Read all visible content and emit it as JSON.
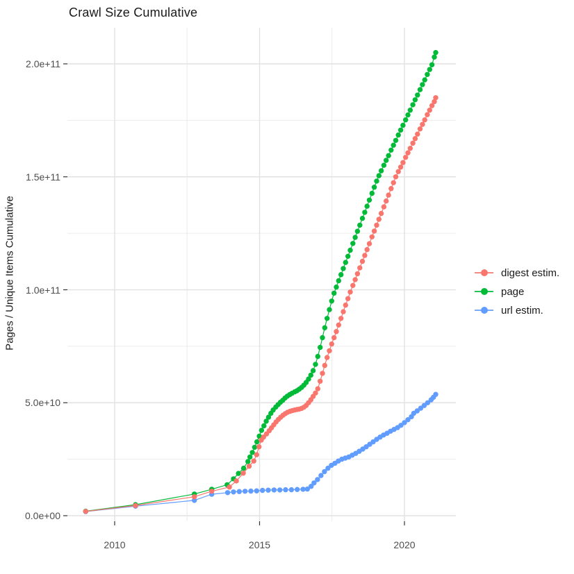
{
  "chart_data": {
    "type": "line",
    "title": "Crawl Size Cumulative",
    "xlabel": "",
    "ylabel": "Pages / Unique Items Cumulative",
    "legend_position": "right",
    "grid": true,
    "marker": "point",
    "xlim": [
      2008.4,
      2021.8
    ],
    "ylim": [
      -2500000000,
      216000000000
    ],
    "x_tick_values": [
      2010,
      2015,
      2020
    ],
    "x_tick_labels": [
      "2010",
      "2015",
      "2020"
    ],
    "x_minor_tick_values": [
      2012.5,
      2017.5
    ],
    "y_tick_values": [
      0,
      50000000000,
      100000000000,
      150000000000,
      200000000000
    ],
    "y_tick_labels": [
      "0.0e+00",
      "5.0e+10",
      "1.0e+11",
      "1.5e+11",
      "2.0e+11"
    ],
    "y_minor_tick_values": [
      25000000000,
      75000000000,
      125000000000,
      175000000000
    ],
    "value_scale": 1000000000,
    "value_unit": "pages / unique items (values below in billions, multiply by value_scale)",
    "colors": {
      "digest_estim": "#F8766D",
      "page": "#00BA38",
      "url_estim": "#619CFF",
      "grid_major": "#e2e2e2",
      "grid_minor": "#ececec",
      "tick_mark": "#333333",
      "tick_text": "#4d4d4d",
      "text": "#1a1a1a"
    },
    "series": [
      {
        "name": "digest estim.",
        "color": "#F8766D",
        "points": [
          [
            2009.0,
            1.9
          ],
          [
            2010.72,
            4.5
          ],
          [
            2012.75,
            8.4
          ],
          [
            2013.35,
            10.8
          ],
          [
            2013.96,
            12.7
          ],
          [
            2014.2,
            15.4
          ],
          [
            2014.44,
            18.8
          ],
          [
            2014.64,
            21.9
          ],
          [
            2014.8,
            24.2
          ],
          [
            2014.9,
            27.0
          ],
          [
            2014.98,
            30.5
          ],
          [
            2015.06,
            33.5
          ],
          [
            2015.14,
            34.8
          ],
          [
            2015.24,
            36.2
          ],
          [
            2015.33,
            37.6
          ],
          [
            2015.41,
            38.9
          ],
          [
            2015.49,
            40.2
          ],
          [
            2015.57,
            41.5
          ],
          [
            2015.65,
            42.6
          ],
          [
            2015.73,
            43.6
          ],
          [
            2015.81,
            44.5
          ],
          [
            2015.89,
            45.2
          ],
          [
            2015.97,
            45.8
          ],
          [
            2016.05,
            46.2
          ],
          [
            2016.13,
            46.5
          ],
          [
            2016.21,
            46.8
          ],
          [
            2016.29,
            47.0
          ],
          [
            2016.37,
            47.2
          ],
          [
            2016.45,
            47.5
          ],
          [
            2016.53,
            48.0
          ],
          [
            2016.61,
            48.8
          ],
          [
            2016.69,
            50.0
          ],
          [
            2016.77,
            51.3
          ],
          [
            2016.85,
            52.8
          ],
          [
            2016.93,
            54.3
          ],
          [
            2017.01,
            56.2
          ],
          [
            2017.09,
            59.5
          ],
          [
            2017.17,
            63.0
          ],
          [
            2017.25,
            66.5
          ],
          [
            2017.33,
            70.0
          ],
          [
            2017.41,
            73.0
          ],
          [
            2017.49,
            76.0
          ],
          [
            2017.57,
            78.8
          ],
          [
            2017.65,
            81.5
          ],
          [
            2017.73,
            84.4
          ],
          [
            2017.81,
            87.3
          ],
          [
            2017.89,
            90.3
          ],
          [
            2017.97,
            93.2
          ],
          [
            2018.05,
            96.1
          ],
          [
            2018.13,
            99.0
          ],
          [
            2018.22,
            101.9
          ],
          [
            2018.3,
            104.5
          ],
          [
            2018.38,
            107.1
          ],
          [
            2018.46,
            109.7
          ],
          [
            2018.55,
            112.6
          ],
          [
            2018.63,
            115.2
          ],
          [
            2018.71,
            117.8
          ],
          [
            2018.79,
            120.4
          ],
          [
            2018.88,
            123.4
          ],
          [
            2018.96,
            126.0
          ],
          [
            2019.04,
            128.6
          ],
          [
            2019.12,
            131.2
          ],
          [
            2019.2,
            133.8
          ],
          [
            2019.29,
            136.7
          ],
          [
            2019.37,
            139.3
          ],
          [
            2019.45,
            141.9
          ],
          [
            2019.54,
            144.8
          ],
          [
            2019.62,
            147.4
          ],
          [
            2019.7,
            150.0
          ],
          [
            2019.79,
            152.3
          ],
          [
            2019.87,
            154.3
          ],
          [
            2019.95,
            156.3
          ],
          [
            2020.04,
            158.6
          ],
          [
            2020.12,
            160.6
          ],
          [
            2020.2,
            162.6
          ],
          [
            2020.29,
            164.9
          ],
          [
            2020.37,
            166.9
          ],
          [
            2020.45,
            168.9
          ],
          [
            2020.54,
            171.2
          ],
          [
            2020.62,
            173.2
          ],
          [
            2020.7,
            175.2
          ],
          [
            2020.79,
            177.5
          ],
          [
            2020.87,
            179.5
          ],
          [
            2020.95,
            181.5
          ],
          [
            2021.03,
            183.3
          ],
          [
            2021.08,
            185.0
          ]
        ]
      },
      {
        "name": "page",
        "color": "#00BA38",
        "points": [
          [
            2009.0,
            2.0
          ],
          [
            2010.72,
            4.9
          ],
          [
            2012.75,
            9.6
          ],
          [
            2013.35,
            11.7
          ],
          [
            2013.88,
            13.7
          ],
          [
            2014.1,
            16.3
          ],
          [
            2014.27,
            18.7
          ],
          [
            2014.45,
            21.0
          ],
          [
            2014.6,
            24.0
          ],
          [
            2014.67,
            26.0
          ],
          [
            2014.75,
            28.0
          ],
          [
            2014.83,
            30.3
          ],
          [
            2014.91,
            32.7
          ],
          [
            2014.99,
            35.2
          ],
          [
            2015.07,
            37.8
          ],
          [
            2015.15,
            39.8
          ],
          [
            2015.23,
            41.8
          ],
          [
            2015.31,
            43.6
          ],
          [
            2015.39,
            45.3
          ],
          [
            2015.47,
            46.8
          ],
          [
            2015.56,
            48.1
          ],
          [
            2015.64,
            49.2
          ],
          [
            2015.72,
            50.2
          ],
          [
            2015.8,
            51.1
          ],
          [
            2015.88,
            52.1
          ],
          [
            2015.96,
            52.9
          ],
          [
            2016.04,
            53.6
          ],
          [
            2016.12,
            54.2
          ],
          [
            2016.21,
            54.8
          ],
          [
            2016.29,
            55.3
          ],
          [
            2016.37,
            56.0
          ],
          [
            2016.45,
            56.8
          ],
          [
            2016.53,
            57.8
          ],
          [
            2016.61,
            59.0
          ],
          [
            2016.69,
            60.5
          ],
          [
            2016.77,
            62.2
          ],
          [
            2016.85,
            64.2
          ],
          [
            2016.93,
            67.0
          ],
          [
            2017.01,
            70.5
          ],
          [
            2017.09,
            74.5
          ],
          [
            2017.17,
            78.8
          ],
          [
            2017.25,
            83.2
          ],
          [
            2017.33,
            87.3
          ],
          [
            2017.41,
            91.2
          ],
          [
            2017.49,
            95.0
          ],
          [
            2017.57,
            98.5
          ],
          [
            2017.65,
            101.2
          ],
          [
            2017.73,
            104.0
          ],
          [
            2017.81,
            106.7
          ],
          [
            2017.89,
            109.4
          ],
          [
            2017.97,
            112.1
          ],
          [
            2018.05,
            114.8
          ],
          [
            2018.13,
            117.5
          ],
          [
            2018.22,
            120.5
          ],
          [
            2018.3,
            123.2
          ],
          [
            2018.38,
            125.9
          ],
          [
            2018.46,
            128.6
          ],
          [
            2018.55,
            131.6
          ],
          [
            2018.63,
            134.3
          ],
          [
            2018.71,
            137.0
          ],
          [
            2018.79,
            139.7
          ],
          [
            2018.88,
            142.7
          ],
          [
            2018.96,
            145.4
          ],
          [
            2019.04,
            148.1
          ],
          [
            2019.12,
            150.5
          ],
          [
            2019.2,
            152.7
          ],
          [
            2019.29,
            155.1
          ],
          [
            2019.37,
            157.3
          ],
          [
            2019.45,
            159.4
          ],
          [
            2019.54,
            161.8
          ],
          [
            2019.62,
            164.0
          ],
          [
            2019.7,
            166.1
          ],
          [
            2019.79,
            168.5
          ],
          [
            2019.87,
            170.7
          ],
          [
            2019.95,
            172.8
          ],
          [
            2020.04,
            175.2
          ],
          [
            2020.12,
            177.4
          ],
          [
            2020.2,
            179.5
          ],
          [
            2020.29,
            181.9
          ],
          [
            2020.37,
            184.1
          ],
          [
            2020.45,
            186.2
          ],
          [
            2020.54,
            188.6
          ],
          [
            2020.62,
            190.8
          ],
          [
            2020.7,
            192.9
          ],
          [
            2020.79,
            195.3
          ],
          [
            2020.87,
            197.5
          ],
          [
            2020.95,
            199.6
          ],
          [
            2021.03,
            203.0
          ],
          [
            2021.08,
            205.0
          ]
        ]
      },
      {
        "name": "url estim.",
        "color": "#619CFF",
        "points": [
          [
            2009.0,
            1.8
          ],
          [
            2010.72,
            4.2
          ],
          [
            2012.75,
            6.8
          ],
          [
            2013.35,
            9.5
          ],
          [
            2013.9,
            10.2
          ],
          [
            2014.1,
            10.5
          ],
          [
            2014.3,
            10.7
          ],
          [
            2014.5,
            10.8
          ],
          [
            2014.7,
            10.9
          ],
          [
            2014.9,
            11.0
          ],
          [
            2015.1,
            11.2
          ],
          [
            2015.3,
            11.3
          ],
          [
            2015.5,
            11.4
          ],
          [
            2015.7,
            11.4
          ],
          [
            2015.9,
            11.5
          ],
          [
            2016.1,
            11.5
          ],
          [
            2016.3,
            11.6
          ],
          [
            2016.5,
            11.7
          ],
          [
            2016.65,
            11.8
          ],
          [
            2016.78,
            13.0
          ],
          [
            2016.88,
            14.5
          ],
          [
            2017.0,
            16.0
          ],
          [
            2017.12,
            17.8
          ],
          [
            2017.24,
            19.5
          ],
          [
            2017.36,
            21.0
          ],
          [
            2017.48,
            22.3
          ],
          [
            2017.6,
            23.2
          ],
          [
            2017.72,
            24.2
          ],
          [
            2017.84,
            25.0
          ],
          [
            2017.96,
            25.5
          ],
          [
            2018.08,
            26.0
          ],
          [
            2018.2,
            26.8
          ],
          [
            2018.32,
            27.6
          ],
          [
            2018.44,
            28.5
          ],
          [
            2018.56,
            29.5
          ],
          [
            2018.68,
            30.5
          ],
          [
            2018.8,
            31.6
          ],
          [
            2018.92,
            32.7
          ],
          [
            2019.04,
            33.8
          ],
          [
            2019.16,
            34.8
          ],
          [
            2019.28,
            35.7
          ],
          [
            2019.4,
            36.5
          ],
          [
            2019.52,
            37.4
          ],
          [
            2019.64,
            38.2
          ],
          [
            2019.76,
            39.0
          ],
          [
            2019.88,
            40.0
          ],
          [
            2020.0,
            41.2
          ],
          [
            2020.12,
            42.5
          ],
          [
            2020.24,
            43.8
          ],
          [
            2020.32,
            45.3
          ],
          [
            2020.44,
            46.4
          ],
          [
            2020.56,
            47.6
          ],
          [
            2020.68,
            48.8
          ],
          [
            2020.8,
            50.0
          ],
          [
            2020.92,
            51.3
          ],
          [
            2021.0,
            52.4
          ],
          [
            2021.08,
            53.7
          ]
        ]
      }
    ]
  }
}
